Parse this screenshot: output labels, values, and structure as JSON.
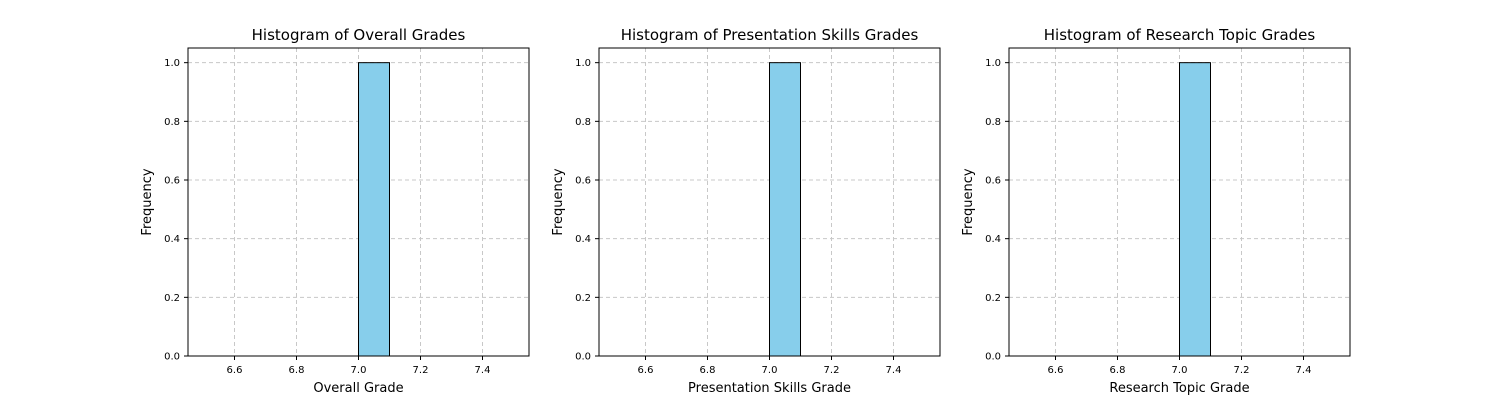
{
  "colors": {
    "bar_fill": "#87ceeb",
    "bar_edge": "#000000",
    "grid": "#c8c8c8",
    "axes": "#000000"
  },
  "chart_data": [
    {
      "type": "bar",
      "title": "Histogram of Overall Grades",
      "xlabel": "Overall Grade",
      "ylabel": "Frequency",
      "xlim": [
        6.45,
        7.55
      ],
      "ylim": [
        0,
        1.05
      ],
      "xticks": [
        "6.6",
        "6.8",
        "7.0",
        "7.2",
        "7.4"
      ],
      "yticks": [
        "0.0",
        "0.2",
        "0.4",
        "0.6",
        "0.8",
        "1.0"
      ],
      "grid": true,
      "bins": [
        {
          "x0": 6.5,
          "x1": 6.6,
          "count": 0
        },
        {
          "x0": 6.6,
          "x1": 6.7,
          "count": 0
        },
        {
          "x0": 6.7,
          "x1": 6.8,
          "count": 0
        },
        {
          "x0": 6.8,
          "x1": 6.9,
          "count": 0
        },
        {
          "x0": 6.9,
          "x1": 7.0,
          "count": 0
        },
        {
          "x0": 7.0,
          "x1": 7.1,
          "count": 1
        },
        {
          "x0": 7.1,
          "x1": 7.2,
          "count": 0
        },
        {
          "x0": 7.2,
          "x1": 7.3,
          "count": 0
        },
        {
          "x0": 7.3,
          "x1": 7.4,
          "count": 0
        },
        {
          "x0": 7.4,
          "x1": 7.5,
          "count": 0
        }
      ]
    },
    {
      "type": "bar",
      "title": "Histogram of Presentation Skills Grades",
      "xlabel": "Presentation Skills Grade",
      "ylabel": "Frequency",
      "xlim": [
        6.45,
        7.55
      ],
      "ylim": [
        0,
        1.05
      ],
      "xticks": [
        "6.6",
        "6.8",
        "7.0",
        "7.2",
        "7.4"
      ],
      "yticks": [
        "0.0",
        "0.2",
        "0.4",
        "0.6",
        "0.8",
        "1.0"
      ],
      "grid": true,
      "bins": [
        {
          "x0": 6.5,
          "x1": 6.6,
          "count": 0
        },
        {
          "x0": 6.6,
          "x1": 6.7,
          "count": 0
        },
        {
          "x0": 6.7,
          "x1": 6.8,
          "count": 0
        },
        {
          "x0": 6.8,
          "x1": 6.9,
          "count": 0
        },
        {
          "x0": 6.9,
          "x1": 7.0,
          "count": 0
        },
        {
          "x0": 7.0,
          "x1": 7.1,
          "count": 1
        },
        {
          "x0": 7.1,
          "x1": 7.2,
          "count": 0
        },
        {
          "x0": 7.2,
          "x1": 7.3,
          "count": 0
        },
        {
          "x0": 7.3,
          "x1": 7.4,
          "count": 0
        },
        {
          "x0": 7.4,
          "x1": 7.5,
          "count": 0
        }
      ]
    },
    {
      "type": "bar",
      "title": "Histogram of Research Topic Grades",
      "xlabel": "Research Topic Grade",
      "ylabel": "Frequency",
      "xlim": [
        6.45,
        7.55
      ],
      "ylim": [
        0,
        1.05
      ],
      "xticks": [
        "6.6",
        "6.8",
        "7.0",
        "7.2",
        "7.4"
      ],
      "yticks": [
        "0.0",
        "0.2",
        "0.4",
        "0.6",
        "0.8",
        "1.0"
      ],
      "grid": true,
      "bins": [
        {
          "x0": 6.5,
          "x1": 6.6,
          "count": 0
        },
        {
          "x0": 6.6,
          "x1": 6.7,
          "count": 0
        },
        {
          "x0": 6.7,
          "x1": 6.8,
          "count": 0
        },
        {
          "x0": 6.8,
          "x1": 6.9,
          "count": 0
        },
        {
          "x0": 6.9,
          "x1": 7.0,
          "count": 0
        },
        {
          "x0": 7.0,
          "x1": 7.1,
          "count": 1
        },
        {
          "x0": 7.1,
          "x1": 7.2,
          "count": 0
        },
        {
          "x0": 7.2,
          "x1": 7.3,
          "count": 0
        },
        {
          "x0": 7.3,
          "x1": 7.4,
          "count": 0
        },
        {
          "x0": 7.4,
          "x1": 7.5,
          "count": 0
        }
      ]
    }
  ]
}
